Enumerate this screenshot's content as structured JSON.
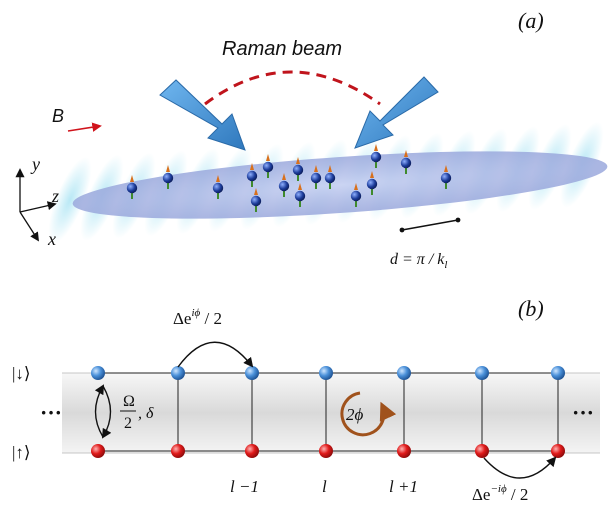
{
  "panel_a": {
    "label": "(a)",
    "beam_label": "Raman beam",
    "field_label": "B",
    "axes": {
      "y": "y",
      "z": "z",
      "x": "x"
    },
    "spacing_label": "d = π / k",
    "spacing_subscript": "l",
    "colors": {
      "beam_arrow": "#3f8fd0",
      "dashed_arc": "#c0141c",
      "field_arrow": "#d0141c",
      "cloud": "#aab8e6"
    }
  },
  "panel_b": {
    "label": "(b)",
    "state_down": "|↓⟩",
    "state_up": "|↑⟩",
    "ellipsis": "···",
    "coupling_omega_num": "Ω",
    "coupling_omega_den": "2",
    "coupling_delta": ", δ",
    "hop_top": "Δe",
    "hop_top_exp": "iϕ",
    "hop_top_tail": " / 2",
    "hop_bottom": "Δe",
    "hop_bottom_exp": "−iϕ",
    "hop_bottom_tail": " / 2",
    "flux_label": "2ϕ",
    "site_labels": [
      "l −1",
      "l",
      "l +1"
    ],
    "colors": {
      "site_down": "#4a90d9",
      "site_up": "#d81c1c",
      "flux": "#a0521c",
      "band": "#dcdcdc"
    }
  }
}
